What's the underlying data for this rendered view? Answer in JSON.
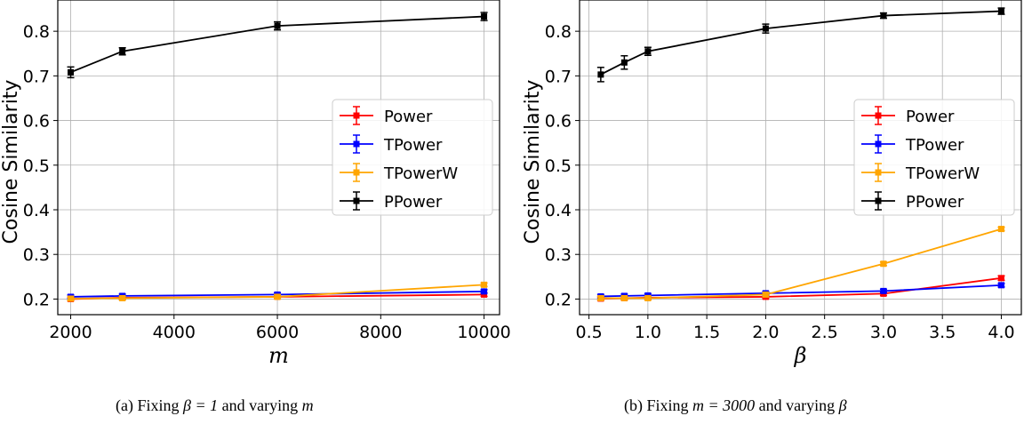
{
  "chart_data": [
    {
      "type": "line",
      "xlabel": "m",
      "ylabel": "Cosine Similarity",
      "xlim": [
        1750,
        10300
      ],
      "ylim": [
        0.165,
        0.87
      ],
      "xticks": [
        2000,
        4000,
        6000,
        8000,
        10000
      ],
      "yticks": [
        0.2,
        0.3,
        0.4,
        0.5,
        0.6,
        0.7,
        0.8
      ],
      "grid": true,
      "legend_position": "center-right",
      "x": [
        2000,
        3000,
        6000,
        10000
      ],
      "series": [
        {
          "name": "Power",
          "color": "#ff0000",
          "values": [
            0.2,
            0.203,
            0.205,
            0.21
          ],
          "errors": [
            0.004,
            0.004,
            0.004,
            0.004
          ]
        },
        {
          "name": "TPower",
          "color": "#0000ff",
          "values": [
            0.205,
            0.207,
            0.21,
            0.217
          ],
          "errors": [
            0.004,
            0.004,
            0.004,
            0.004
          ]
        },
        {
          "name": "TPowerW",
          "color": "#ffa500",
          "values": [
            0.201,
            0.202,
            0.205,
            0.232
          ],
          "errors": [
            0.004,
            0.004,
            0.004,
            0.004
          ]
        },
        {
          "name": "PPower",
          "color": "#000000",
          "values": [
            0.708,
            0.755,
            0.812,
            0.833
          ],
          "errors": [
            0.012,
            0.008,
            0.009,
            0.009
          ]
        }
      ],
      "caption_pre": "(a) Fixing ",
      "caption_m1": "β = 1",
      "caption_mid": " and varying ",
      "caption_m2": "m"
    },
    {
      "type": "line",
      "xlabel": "β",
      "ylabel": "Cosine Similarity",
      "xlim": [
        0.42,
        4.17
      ],
      "ylim": [
        0.165,
        0.87
      ],
      "xticks": [
        0.5,
        1.0,
        1.5,
        2.0,
        2.5,
        3.0,
        3.5,
        4.0
      ],
      "yticks": [
        0.2,
        0.3,
        0.4,
        0.5,
        0.6,
        0.7,
        0.8
      ],
      "grid": true,
      "legend_position": "center-right",
      "x": [
        0.6,
        0.8,
        1.0,
        2.0,
        3.0,
        4.0
      ],
      "series": [
        {
          "name": "Power",
          "color": "#ff0000",
          "values": [
            0.201,
            0.202,
            0.203,
            0.205,
            0.212,
            0.247
          ],
          "errors": [
            0.004,
            0.004,
            0.004,
            0.004,
            0.004,
            0.005
          ]
        },
        {
          "name": "TPower",
          "color": "#0000ff",
          "values": [
            0.206,
            0.207,
            0.208,
            0.213,
            0.218,
            0.231
          ],
          "errors": [
            0.004,
            0.004,
            0.004,
            0.004,
            0.004,
            0.004
          ]
        },
        {
          "name": "TPowerW",
          "color": "#ffa500",
          "values": [
            0.202,
            0.202,
            0.202,
            0.21,
            0.279,
            0.357
          ],
          "errors": [
            0.004,
            0.004,
            0.004,
            0.004,
            0.004,
            0.004
          ]
        },
        {
          "name": "PPower",
          "color": "#000000",
          "values": [
            0.703,
            0.73,
            0.755,
            0.806,
            0.835,
            0.845
          ],
          "errors": [
            0.016,
            0.015,
            0.009,
            0.01,
            0.006,
            0.007
          ]
        }
      ],
      "caption_pre": "(b) Fixing ",
      "caption_m1": "m = 3000",
      "caption_mid": " and varying ",
      "caption_m2": "β"
    }
  ]
}
